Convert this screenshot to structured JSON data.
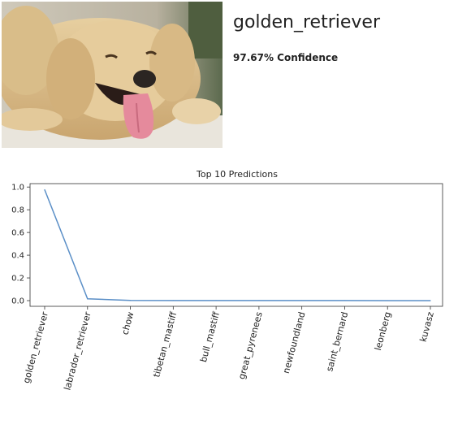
{
  "prediction": {
    "label": "golden_retriever",
    "confidence_text": "97.67% Confidence"
  },
  "image": {
    "subject": "golden retriever lying down with tongue out"
  },
  "chart_data": {
    "type": "line",
    "title": "Top 10 Predictions",
    "xlabel": "",
    "ylabel": "",
    "categories": [
      "golden_retriever",
      "labrador_retriever",
      "chow",
      "tibetan_mastiff",
      "bull_mastiff",
      "great_pyrenees",
      "newfoundland",
      "saint_bernard",
      "leonberg",
      "kuvasz"
    ],
    "values": [
      0.9767,
      0.016,
      0.002,
      0.001,
      0.001,
      0.0008,
      0.0006,
      0.0005,
      0.0004,
      0.0003
    ],
    "ylim": [
      -0.05,
      1.03
    ],
    "yticks": [
      0.0,
      0.2,
      0.4,
      0.6,
      0.8,
      1.0
    ],
    "ytick_labels": [
      "0.0",
      "0.2",
      "0.4",
      "0.6",
      "0.8",
      "1.0"
    ],
    "grid": false,
    "line_color": "#5b8fc7"
  }
}
